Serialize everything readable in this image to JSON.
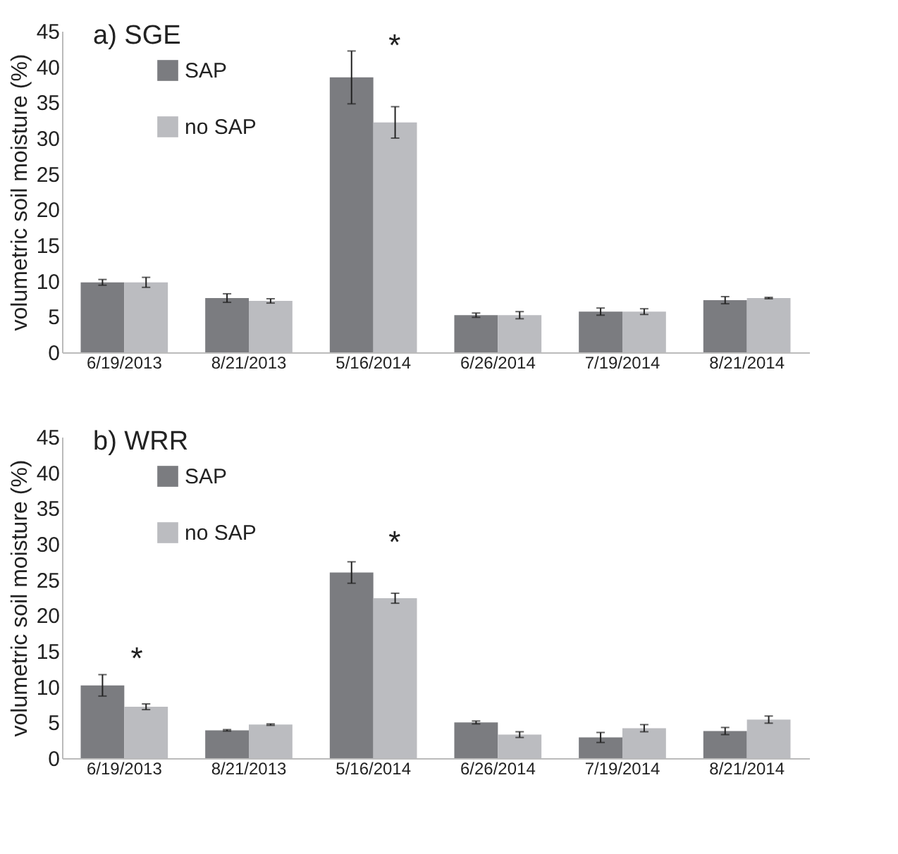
{
  "chart_data": [
    {
      "type": "bar",
      "title": "a) SGE",
      "ylabel": "volumetric soil moisture (%)",
      "categories": [
        "6/19/2013",
        "8/21/2013",
        "5/16/2014",
        "6/26/2014",
        "7/19/2014",
        "8/21/2014"
      ],
      "series": [
        {
          "name": "SAP",
          "color": "#7b7c80",
          "values": [
            9.8,
            7.6,
            38.5,
            5.2,
            5.7,
            7.3
          ],
          "errors": [
            0.4,
            0.6,
            3.7,
            0.3,
            0.5,
            0.5
          ]
        },
        {
          "name": "no SAP",
          "color": "#bbbcc0",
          "values": [
            9.8,
            7.2,
            32.2,
            5.2,
            5.7,
            7.6
          ],
          "errors": [
            0.7,
            0.3,
            2.2,
            0.5,
            0.4,
            0.1
          ]
        }
      ],
      "ylim": [
        0,
        45
      ],
      "yticks": [
        0,
        5,
        10,
        15,
        20,
        25,
        30,
        35,
        40,
        45
      ],
      "grid": false,
      "legend": "top left",
      "annotations": [
        "*"
      ]
    },
    {
      "type": "bar",
      "title": "b) WRR",
      "ylabel": "volumetric soil moisture (%)",
      "categories": [
        "6/19/2013",
        "8/21/2013",
        "5/16/2014",
        "6/26/2014",
        "7/19/2014",
        "8/21/2014"
      ],
      "series": [
        {
          "name": "SAP",
          "color": "#7b7c80",
          "values": [
            10.2,
            3.9,
            26.0,
            5.0,
            2.9,
            3.8
          ],
          "errors": [
            1.5,
            0.1,
            1.5,
            0.2,
            0.7,
            0.5
          ]
        },
        {
          "name": "no SAP",
          "color": "#bbbcc0",
          "values": [
            7.2,
            4.7,
            22.4,
            3.3,
            4.2,
            5.4
          ],
          "errors": [
            0.4,
            0.1,
            0.7,
            0.4,
            0.5,
            0.5
          ]
        }
      ],
      "ylim": [
        0,
        45
      ],
      "yticks": [
        0,
        5,
        10,
        15,
        20,
        25,
        30,
        35,
        40,
        45
      ],
      "grid": false,
      "legend": "top left",
      "annotations": [
        "*",
        "*"
      ]
    }
  ]
}
